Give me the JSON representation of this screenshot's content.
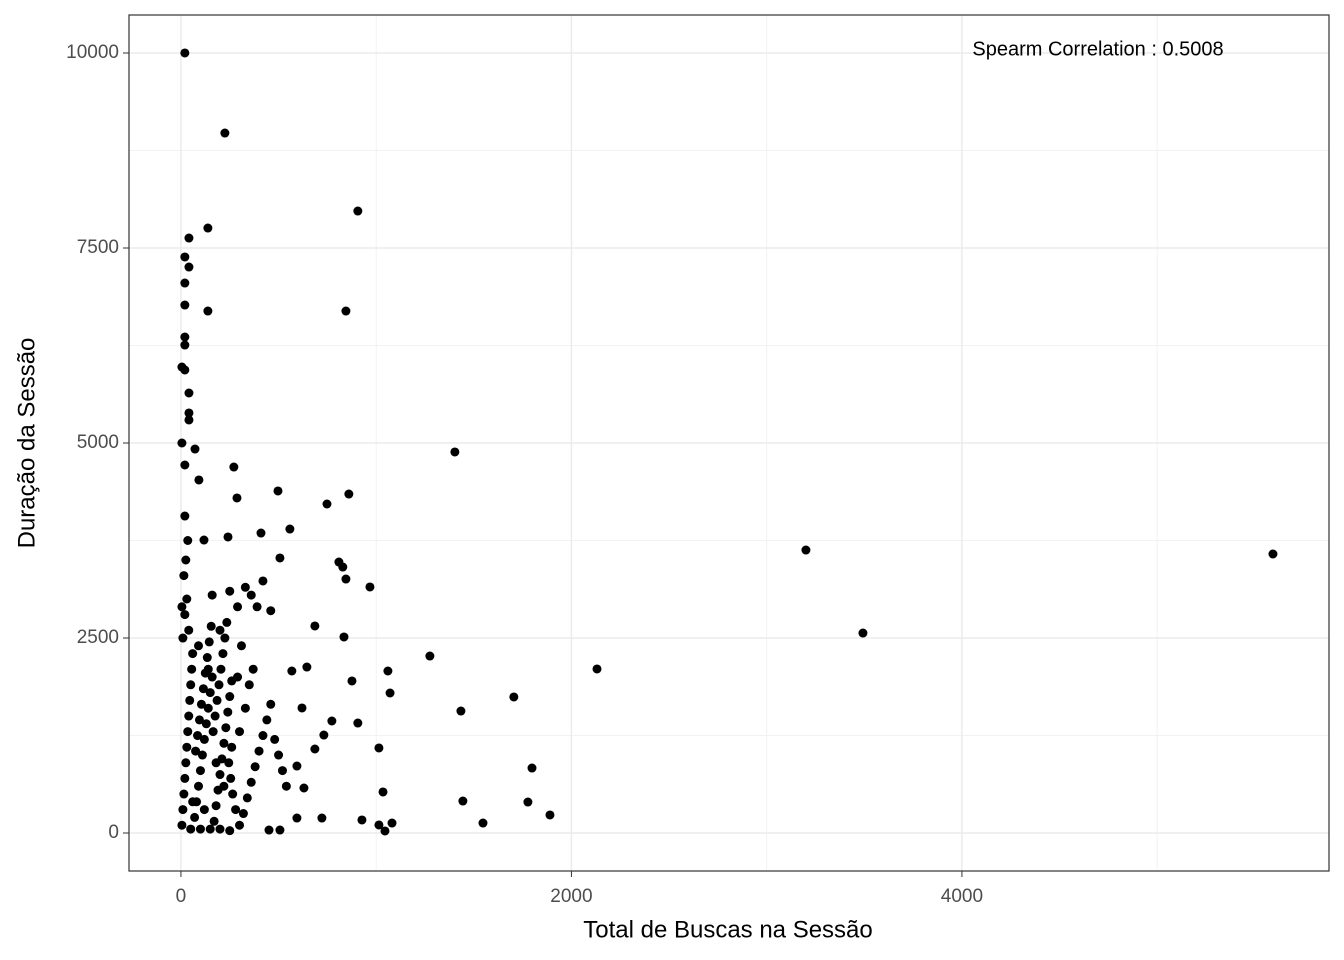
{
  "chart_data": {
    "type": "scatter",
    "x_label": "Total de Buscas na Sessão",
    "y_label": "Duração da Sessão",
    "annotation": "Spearm Correlation :  0.5008",
    "color": "#000000",
    "grid": true,
    "xlim": [
      -266,
      5880
    ],
    "ylim": [
      -487,
      10487
    ],
    "xticks": [
      0,
      2000,
      4000
    ],
    "yticks": [
      0,
      2500,
      5000,
      7500,
      10000
    ],
    "xminor": [
      1000,
      3000,
      5000
    ],
    "yminor": [
      1250,
      3750,
      6250,
      8750
    ],
    "x": [
      20,
      225,
      906,
      138,
      41,
      20,
      41,
      20,
      845,
      138,
      20,
      20,
      20,
      5,
      20,
      41,
      41,
      41,
      5,
      72,
      20,
      1403,
      271,
      92,
      497,
      860,
      287,
      748,
      20,
      558,
      410,
      241,
      118,
      3201,
      5593,
      507,
      809,
      829,
      845,
      968,
      420,
      3493,
      686,
      835,
      2131,
      1275,
      1060,
      645,
      568,
      876,
      1071,
      1705,
      1434,
      620,
      906,
      773,
      732,
      1014,
      686,
      1798,
      594,
      1035,
      1777,
      1444,
      630,
      1890,
      927,
      722,
      1081,
      1547,
      1014,
      1045,
      594,
      507,
      451,
      5,
      10,
      15,
      20,
      25,
      30,
      35,
      40,
      45,
      50,
      55,
      60,
      10,
      20,
      30,
      15,
      25,
      35,
      5,
      40,
      70,
      80,
      90,
      100,
      110,
      120,
      130,
      140,
      150,
      160,
      170,
      180,
      190,
      200,
      210,
      220,
      230,
      240,
      250,
      260,
      75,
      85,
      95,
      105,
      115,
      125,
      135,
      145,
      155,
      165,
      175,
      185,
      195,
      205,
      215,
      225,
      235,
      245,
      255,
      265,
      280,
      300,
      320,
      340,
      360,
      380,
      400,
      420,
      440,
      460,
      480,
      500,
      520,
      540,
      300,
      330,
      350,
      370,
      290,
      310,
      50,
      100,
      150,
      200,
      250,
      60,
      120,
      180,
      220,
      260,
      140,
      90,
      200,
      160,
      250,
      290,
      360,
      390,
      460,
      330
    ],
    "values": [
      10000,
      8974,
      7974,
      7756,
      7628,
      7385,
      7256,
      7051,
      6692,
      6692,
      6769,
      6359,
      6256,
      5974,
      5936,
      5641,
      5385,
      5295,
      5000,
      4923,
      4718,
      4885,
      4692,
      4526,
      4385,
      4346,
      4295,
      4218,
      4064,
      3897,
      3846,
      3795,
      3756,
      3628,
      3577,
      3526,
      3474,
      3410,
      3256,
      3154,
      3231,
      2564,
      2654,
      2513,
      2103,
      2269,
      2077,
      2128,
      2077,
      1949,
      1795,
      1744,
      1564,
      1603,
      1410,
      1436,
      1256,
      1090,
      1077,
      833,
      859,
      526,
      397,
      410,
      577,
      231,
      167,
      192,
      128,
      128,
      103,
      26,
      192,
      38,
      38,
      100,
      300,
      500,
      700,
      900,
      1100,
      1300,
      1500,
      1700,
      1900,
      2100,
      2300,
      2500,
      2800,
      3000,
      3300,
      3500,
      3750,
      2900,
      2600,
      200,
      400,
      600,
      800,
      1000,
      1200,
      1400,
      1600,
      1800,
      2000,
      150,
      350,
      550,
      750,
      950,
      1150,
      1350,
      1550,
      1750,
      1950,
      1050,
      1250,
      1450,
      1650,
      1850,
      2050,
      2250,
      2450,
      2650,
      1300,
      1500,
      1700,
      1900,
      2100,
      2300,
      2500,
      2700,
      900,
      700,
      500,
      300,
      100,
      250,
      450,
      650,
      850,
      1050,
      1250,
      1450,
      1650,
      1200,
      1000,
      800,
      600,
      1300,
      1600,
      1900,
      2100,
      2000,
      2400,
      50,
      50,
      50,
      50,
      30,
      400,
      300,
      900,
      600,
      1100,
      2100,
      2400,
      2600,
      3050,
      3100,
      2900,
      3050,
      2900,
      2850,
      3150
    ]
  }
}
